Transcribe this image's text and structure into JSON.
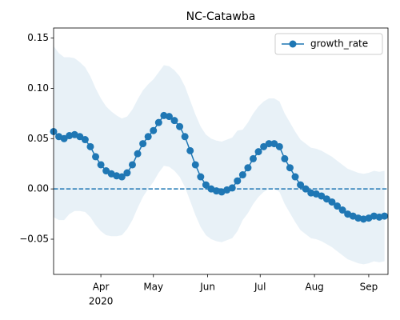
{
  "chart_data": {
    "type": "line",
    "title": "NC-Catawba",
    "x": [
      65,
      68,
      71,
      74,
      77,
      80,
      83,
      86,
      89,
      92,
      95,
      98,
      101,
      104,
      107,
      110,
      113,
      116,
      119,
      122,
      125,
      128,
      131,
      134,
      137,
      140,
      143,
      146,
      149,
      152,
      155,
      158,
      161,
      164,
      167,
      170,
      173,
      176,
      179,
      182,
      185,
      188,
      191,
      194,
      197,
      200,
      203,
      206,
      209,
      212,
      215,
      218,
      221,
      224,
      227,
      230,
      233,
      236,
      239,
      242,
      245,
      248,
      251,
      254
    ],
    "series": [
      {
        "name": "growth_rate",
        "color": "#1f77b4",
        "values": [
          0.057,
          0.052,
          0.05,
          0.053,
          0.054,
          0.052,
          0.049,
          0.042,
          0.032,
          0.024,
          0.018,
          0.015,
          0.013,
          0.012,
          0.016,
          0.024,
          0.035,
          0.045,
          0.052,
          0.058,
          0.066,
          0.073,
          0.072,
          0.068,
          0.062,
          0.052,
          0.038,
          0.024,
          0.012,
          0.004,
          0.0,
          -0.002,
          -0.003,
          -0.001,
          0.001,
          0.008,
          0.014,
          0.021,
          0.03,
          0.037,
          0.042,
          0.045,
          0.045,
          0.042,
          0.03,
          0.021,
          0.012,
          0.004,
          0.0,
          -0.004,
          -0.005,
          -0.007,
          -0.01,
          -0.013,
          -0.017,
          -0.021,
          -0.025,
          -0.027,
          -0.029,
          -0.03,
          -0.029,
          -0.027,
          -0.028,
          -0.027
        ]
      }
    ],
    "band": {
      "color": "#1f77b4",
      "upper": [
        0.142,
        0.135,
        0.131,
        0.131,
        0.13,
        0.126,
        0.121,
        0.112,
        0.1,
        0.09,
        0.082,
        0.077,
        0.073,
        0.07,
        0.072,
        0.079,
        0.089,
        0.098,
        0.104,
        0.109,
        0.116,
        0.123,
        0.122,
        0.118,
        0.112,
        0.102,
        0.088,
        0.074,
        0.062,
        0.054,
        0.05,
        0.048,
        0.047,
        0.049,
        0.051,
        0.058,
        0.059,
        0.066,
        0.075,
        0.082,
        0.087,
        0.09,
        0.09,
        0.087,
        0.075,
        0.066,
        0.057,
        0.049,
        0.045,
        0.041,
        0.04,
        0.038,
        0.035,
        0.032,
        0.028,
        0.024,
        0.02,
        0.018,
        0.016,
        0.015,
        0.016,
        0.018,
        0.017,
        0.018
      ],
      "lower": [
        -0.028,
        -0.031,
        -0.031,
        -0.025,
        -0.022,
        -0.022,
        -0.023,
        -0.028,
        -0.036,
        -0.042,
        -0.046,
        -0.047,
        -0.047,
        -0.046,
        -0.04,
        -0.031,
        -0.019,
        -0.008,
        0.0,
        0.007,
        0.016,
        0.023,
        0.022,
        0.018,
        0.012,
        0.002,
        -0.012,
        -0.026,
        -0.038,
        -0.046,
        -0.05,
        -0.052,
        -0.053,
        -0.051,
        -0.049,
        -0.042,
        -0.031,
        -0.024,
        -0.015,
        -0.008,
        -0.003,
        0.0,
        0.0,
        -0.003,
        -0.015,
        -0.024,
        -0.033,
        -0.041,
        -0.045,
        -0.049,
        -0.05,
        -0.052,
        -0.055,
        -0.058,
        -0.062,
        -0.066,
        -0.07,
        -0.072,
        -0.074,
        -0.075,
        -0.074,
        -0.072,
        -0.073,
        -0.072
      ]
    },
    "hline": 0,
    "xlim": [
      65,
      256
    ],
    "xticks": [
      {
        "value": 92,
        "label": "Apr"
      },
      {
        "value": 122,
        "label": "May"
      },
      {
        "value": 153,
        "label": "Jun"
      },
      {
        "value": 183,
        "label": "Jul"
      },
      {
        "value": 214,
        "label": "Aug"
      },
      {
        "value": 245,
        "label": "Sep"
      }
    ],
    "x_year": "2020",
    "ylim": [
      -0.085,
      0.16
    ],
    "yticks": [
      {
        "value": -0.05,
        "label": "−0.05"
      },
      {
        "value": 0,
        "label": "0.00"
      },
      0.05,
      {
        "value": 0.1,
        "label": "0.10"
      },
      0.15
    ],
    "legend": "upper right"
  }
}
